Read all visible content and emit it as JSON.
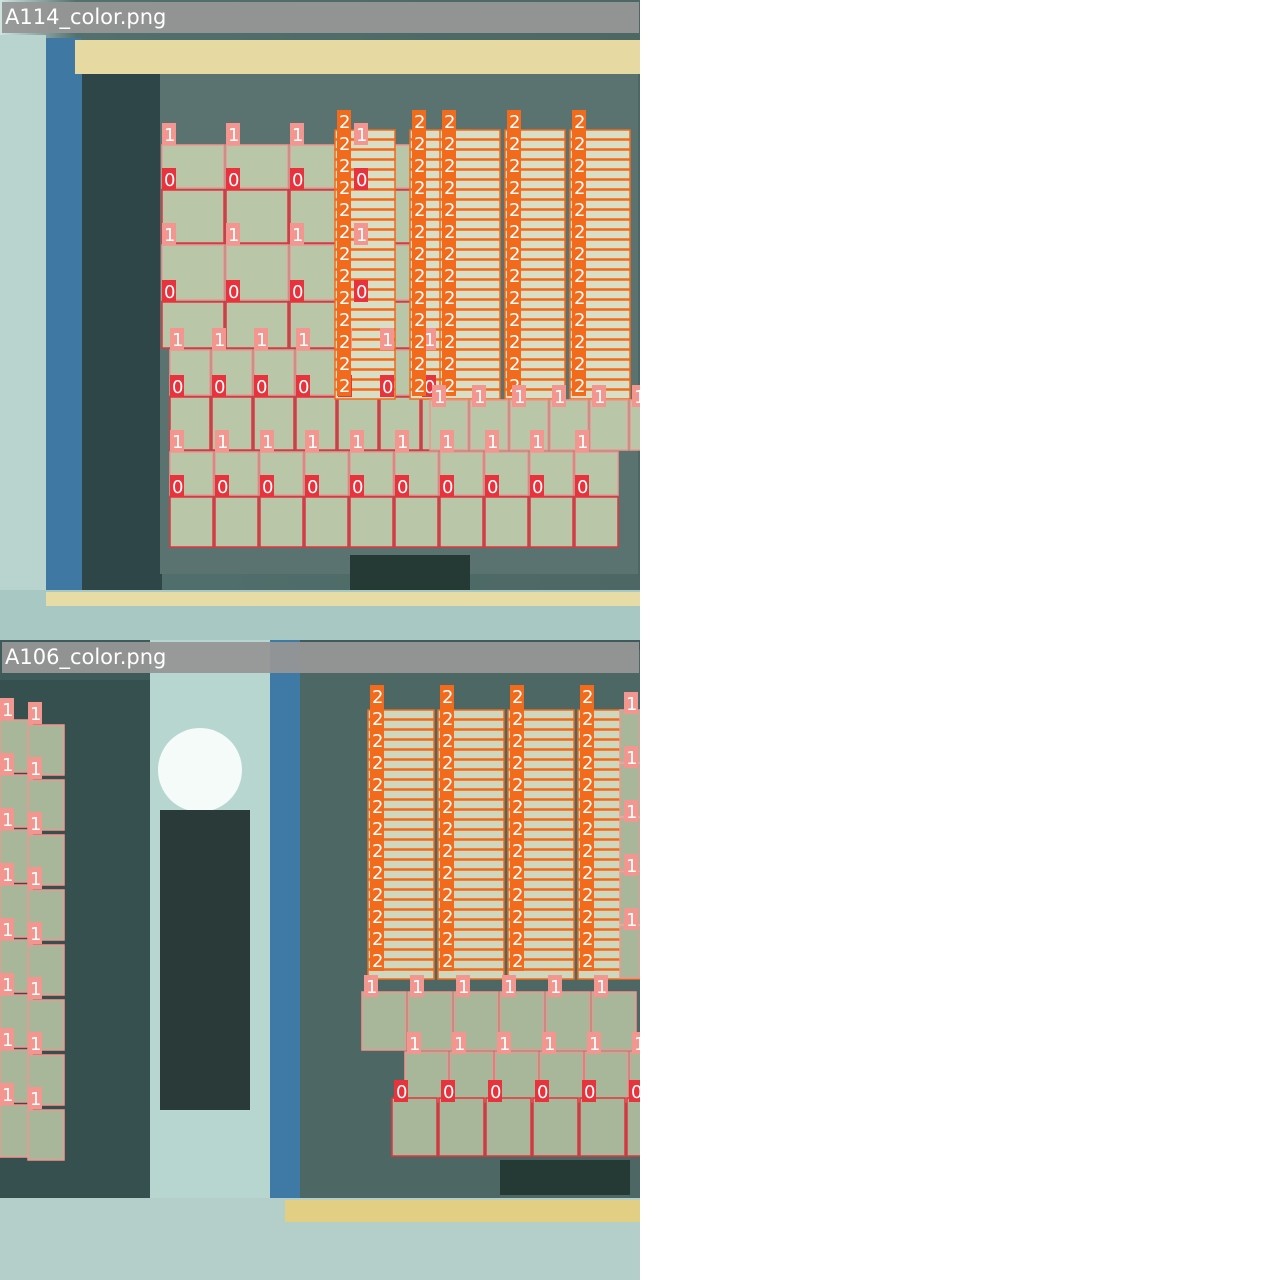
{
  "mosaic": {
    "tiles": [
      {
        "filename": "A114_color.png"
      },
      {
        "filename": "A106_color.png"
      }
    ]
  },
  "detection_classes": [
    {
      "id": "0",
      "color": "#e8323c"
    },
    {
      "id": "1",
      "color": "#f3968f"
    },
    {
      "id": "2",
      "color": "#f26a1b"
    }
  ],
  "label_glyphs": [
    "0",
    "1",
    "2"
  ]
}
